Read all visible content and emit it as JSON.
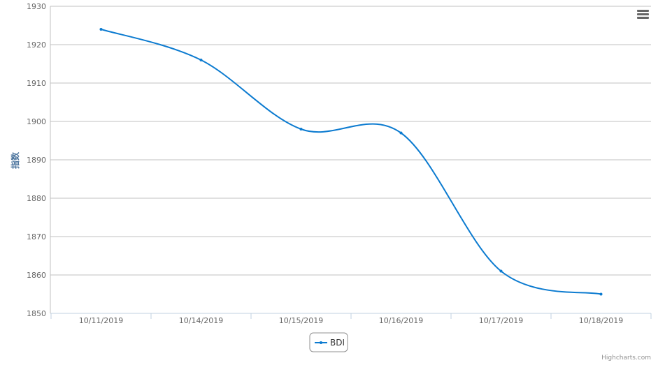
{
  "chart_data": {
    "type": "line",
    "title": "",
    "xlabel": "",
    "ylabel": "指数",
    "categories": [
      "10/11/2019",
      "10/14/2019",
      "10/15/2019",
      "10/16/2019",
      "10/17/2019",
      "10/18/2019"
    ],
    "series": [
      {
        "name": "BDI",
        "values": [
          1924,
          1916,
          1898,
          1897,
          1861,
          1855
        ],
        "color": "#0c7bd0"
      }
    ],
    "yticks": [
      "1850",
      "1860",
      "1870",
      "1880",
      "1890",
      "1900",
      "1910",
      "1920",
      "1930"
    ],
    "ylim": [
      1850,
      1930
    ],
    "grid": true,
    "legend_position": "bottom-center"
  },
  "ui": {
    "menu_icon": "hamburger-menu-icon",
    "credits": "Highcharts.com"
  }
}
